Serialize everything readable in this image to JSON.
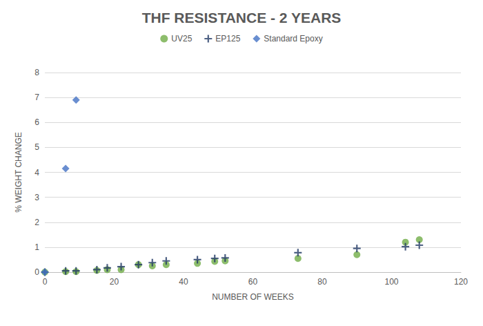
{
  "chart_data": {
    "type": "scatter",
    "title": "THF RESISTANCE - 2 YEARS",
    "x_label": "NUMBER OF WEEKS",
    "y_label": "% WEIGHT CHANGE",
    "xlim": [
      0,
      120
    ],
    "xticks": [
      0,
      20,
      40,
      60,
      80,
      100,
      120
    ],
    "ylim": [
      0,
      8
    ],
    "yticks": [
      0,
      1,
      2,
      3,
      4,
      5,
      6,
      7,
      8
    ],
    "grid": true,
    "legend": "top",
    "series": [
      {
        "name": "UV25",
        "color": "#70ad47",
        "marker": "circle",
        "x": [
          0,
          6,
          9,
          15,
          18,
          22,
          27,
          31,
          35,
          44,
          49,
          52,
          73,
          90,
          104,
          108
        ],
        "values": [
          0,
          0.02,
          0.02,
          0.07,
          0.1,
          0.1,
          0.3,
          0.25,
          0.3,
          0.35,
          0.43,
          0.45,
          0.55,
          0.7,
          1.2,
          1.3
        ]
      },
      {
        "name": "EP125",
        "color": "#203864",
        "marker": "plus",
        "x": [
          0,
          6,
          9,
          15,
          18,
          22,
          27,
          31,
          35,
          44,
          49,
          52,
          73,
          90,
          104,
          108
        ],
        "values": [
          0,
          0.05,
          0.05,
          0.1,
          0.17,
          0.22,
          0.3,
          0.38,
          0.45,
          0.5,
          0.55,
          0.57,
          0.78,
          0.95,
          1.02,
          1.08
        ]
      },
      {
        "name": "Standard Epoxy",
        "color": "#4472c4",
        "marker": "diamond",
        "x": [
          0,
          6,
          9
        ],
        "values": [
          0,
          4.15,
          6.9
        ]
      }
    ]
  }
}
